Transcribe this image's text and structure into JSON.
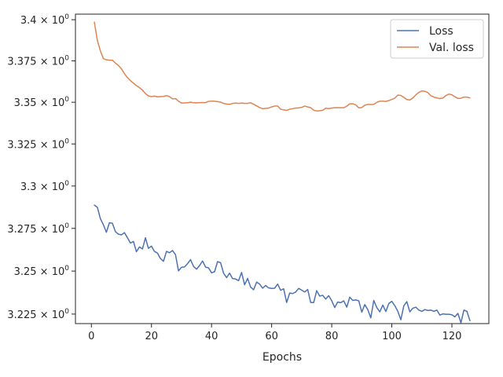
{
  "chart_data": {
    "type": "line",
    "title": "",
    "xlabel": "Epochs",
    "ylabel": "",
    "xlim": [
      -5.3,
      132.3
    ],
    "ylim": [
      3.2195,
      3.4034
    ],
    "y_scale": "log",
    "grid": false,
    "legend_position": "top-right",
    "x_ticks": [
      0,
      20,
      40,
      60,
      80,
      100,
      120
    ],
    "x_tick_labels": [
      "0",
      "20",
      "40",
      "60",
      "80",
      "100",
      "120"
    ],
    "y_ticks": [
      3.225,
      3.25,
      3.275,
      3.3,
      3.325,
      3.35,
      3.375,
      3.4
    ],
    "y_tick_labels": [
      {
        "mantissa": "3.225",
        "base": "10",
        "exp": "0"
      },
      {
        "mantissa": "3.25",
        "base": "10",
        "exp": "0"
      },
      {
        "mantissa": "3.275",
        "base": "10",
        "exp": "0"
      },
      {
        "mantissa": "3.3",
        "base": "10",
        "exp": "0"
      },
      {
        "mantissa": "3.325",
        "base": "10",
        "exp": "0"
      },
      {
        "mantissa": "3.35",
        "base": "10",
        "exp": "0"
      },
      {
        "mantissa": "3.375",
        "base": "10",
        "exp": "0"
      },
      {
        "mantissa": "3.4",
        "base": "10",
        "exp": "0"
      }
    ],
    "series": [
      {
        "name": "Loss",
        "color": "#4c72b0",
        "x_start": 1,
        "values": [
          3.2887,
          3.2874,
          3.2807,
          3.2771,
          3.2727,
          3.2783,
          3.278,
          3.2731,
          3.2716,
          3.2712,
          3.2725,
          3.2695,
          3.2664,
          3.2673,
          3.2613,
          3.2641,
          3.2629,
          3.2695,
          3.2633,
          3.2646,
          3.2615,
          3.2605,
          3.2573,
          3.2557,
          3.2615,
          3.2607,
          3.262,
          3.2596,
          3.2501,
          3.2522,
          3.2524,
          3.2543,
          3.2567,
          3.2527,
          3.2511,
          3.2532,
          3.2559,
          3.2523,
          3.2519,
          3.249,
          3.2496,
          3.2555,
          3.2549,
          3.2488,
          3.2462,
          3.2488,
          3.2456,
          3.2454,
          3.2444,
          3.2492,
          3.242,
          3.2457,
          3.2407,
          3.2391,
          3.2436,
          3.2424,
          3.24,
          3.2416,
          3.2402,
          3.2399,
          3.24,
          3.2424,
          3.2388,
          3.2397,
          3.2317,
          3.2372,
          3.2369,
          3.2378,
          3.2399,
          3.2389,
          3.2378,
          3.2393,
          3.2317,
          3.2317,
          3.2386,
          3.2354,
          3.2359,
          3.2337,
          3.2357,
          3.2327,
          3.2288,
          3.232,
          3.2316,
          3.2327,
          3.229,
          3.2348,
          3.2329,
          3.2332,
          3.2327,
          3.2261,
          3.2305,
          3.2276,
          3.2228,
          3.2329,
          3.2288,
          3.2263,
          3.2302,
          3.2265,
          3.2311,
          3.2324,
          3.2299,
          3.2266,
          3.2217,
          3.2298,
          3.2322,
          3.2263,
          3.2284,
          3.229,
          3.2273,
          3.2266,
          3.2276,
          3.2271,
          3.2273,
          3.2266,
          3.2273,
          3.2244,
          3.2251,
          3.2249,
          3.2249,
          3.2246,
          3.2234,
          3.2254,
          3.22,
          3.2273,
          3.2266,
          3.2212
        ]
      },
      {
        "name": "Val. loss",
        "color": "#dd8452",
        "x_start": 1,
        "values": [
          3.3985,
          3.3873,
          3.381,
          3.3763,
          3.3756,
          3.3754,
          3.3754,
          3.3736,
          3.3722,
          3.3702,
          3.3673,
          3.3648,
          3.363,
          3.3615,
          3.36,
          3.3588,
          3.3573,
          3.3552,
          3.3538,
          3.3534,
          3.3537,
          3.3532,
          3.3534,
          3.3535,
          3.354,
          3.3534,
          3.352,
          3.3522,
          3.3507,
          3.3495,
          3.3496,
          3.3497,
          3.35,
          3.3497,
          3.3496,
          3.3498,
          3.3498,
          3.3498,
          3.3505,
          3.3507,
          3.3506,
          3.3504,
          3.3501,
          3.3493,
          3.3489,
          3.3487,
          3.3493,
          3.3495,
          3.3493,
          3.3495,
          3.3493,
          3.3493,
          3.3497,
          3.3488,
          3.3478,
          3.3468,
          3.3461,
          3.3463,
          3.3465,
          3.3472,
          3.3477,
          3.3477,
          3.3458,
          3.3454,
          3.3451,
          3.3458,
          3.3461,
          3.3465,
          3.3466,
          3.3469,
          3.3477,
          3.3472,
          3.3467,
          3.3452,
          3.3448,
          3.3449,
          3.3452,
          3.3464,
          3.3462,
          3.3465,
          3.3467,
          3.3467,
          3.3467,
          3.3467,
          3.3476,
          3.3491,
          3.3491,
          3.3484,
          3.3466,
          3.3468,
          3.3482,
          3.3487,
          3.3486,
          3.3487,
          3.3499,
          3.3506,
          3.3507,
          3.3505,
          3.351,
          3.3517,
          3.3525,
          3.3543,
          3.3541,
          3.3529,
          3.3516,
          3.3513,
          3.3526,
          3.3544,
          3.3559,
          3.3568,
          3.3566,
          3.3558,
          3.3539,
          3.3531,
          3.3526,
          3.3522,
          3.3525,
          3.354,
          3.3549,
          3.3545,
          3.3533,
          3.3523,
          3.3524,
          3.3531,
          3.3531,
          3.3526
        ]
      }
    ]
  }
}
